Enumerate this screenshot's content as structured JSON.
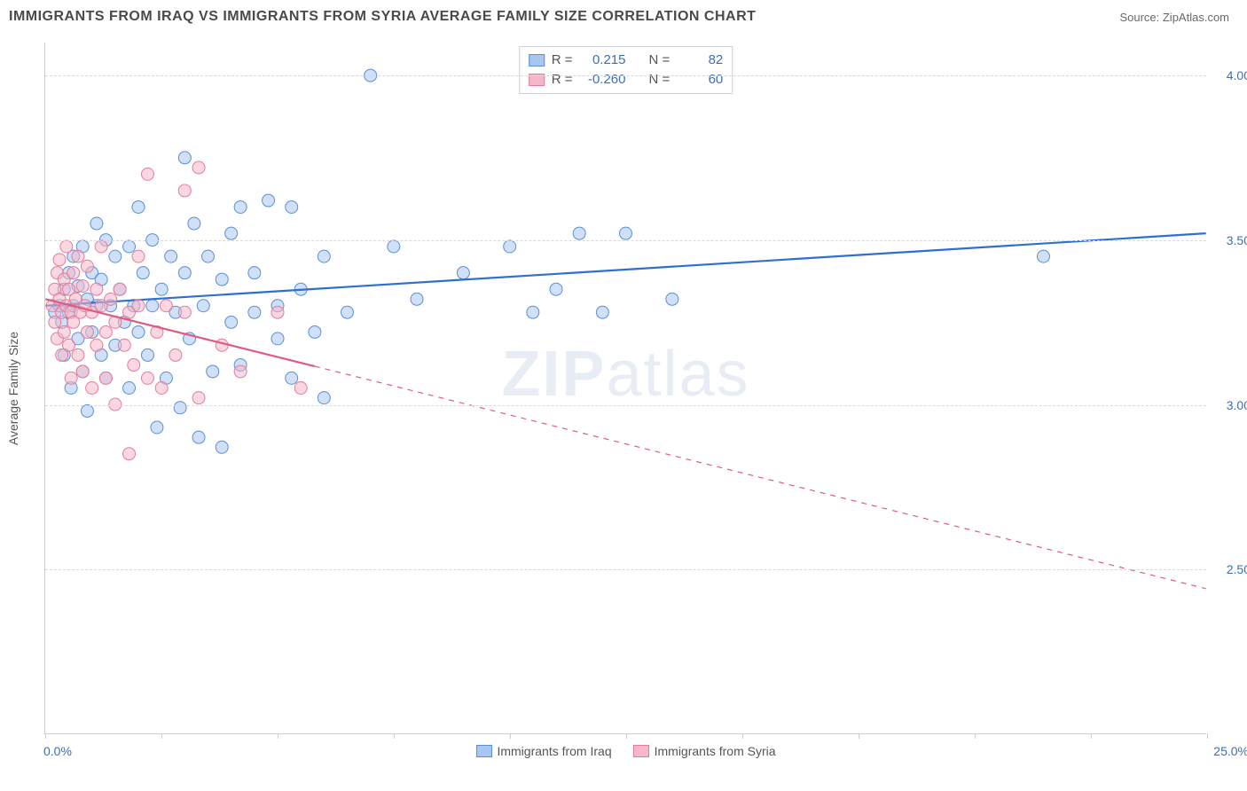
{
  "title": "IMMIGRANTS FROM IRAQ VS IMMIGRANTS FROM SYRIA AVERAGE FAMILY SIZE CORRELATION CHART",
  "source": "Source: ZipAtlas.com",
  "watermark_bold": "ZIP",
  "watermark_rest": "atlas",
  "y_axis_title": "Average Family Size",
  "chart": {
    "type": "scatter-with-regression",
    "background_color": "#ffffff",
    "grid_color": "#d8d8d8",
    "axis_color": "#cccccc",
    "text_color": "#555555",
    "value_color": "#3b6fb6",
    "xlim": [
      0,
      25
    ],
    "ylim": [
      2.0,
      4.1
    ],
    "y_ticks": [
      2.5,
      3.0,
      3.5,
      4.0
    ],
    "x_tick_step": 2.5,
    "x_start_label": "0.0%",
    "x_end_label": "25.0%",
    "marker_radius": 7,
    "marker_opacity": 0.55,
    "line_width": 2.2,
    "series": [
      {
        "name": "Immigrants from Iraq",
        "color_fill": "#a8c6f0",
        "color_stroke": "#5a8fd6",
        "line_color": "#2f6fd0",
        "R": "0.215",
        "N": "82",
        "regression": {
          "x1": 0,
          "y1": 3.3,
          "x2": 25,
          "y2": 3.52,
          "dashed_after_x": 25
        },
        "points": [
          [
            0.2,
            3.28
          ],
          [
            0.3,
            3.3
          ],
          [
            0.35,
            3.25
          ],
          [
            0.4,
            3.35
          ],
          [
            0.4,
            3.15
          ],
          [
            0.5,
            3.4
          ],
          [
            0.5,
            3.28
          ],
          [
            0.55,
            3.05
          ],
          [
            0.6,
            3.3
          ],
          [
            0.6,
            3.45
          ],
          [
            0.7,
            3.2
          ],
          [
            0.7,
            3.36
          ],
          [
            0.8,
            3.48
          ],
          [
            0.8,
            3.1
          ],
          [
            0.9,
            3.32
          ],
          [
            0.9,
            2.98
          ],
          [
            1.0,
            3.4
          ],
          [
            1.0,
            3.22
          ],
          [
            1.1,
            3.55
          ],
          [
            1.1,
            3.3
          ],
          [
            1.2,
            3.15
          ],
          [
            1.2,
            3.38
          ],
          [
            1.3,
            3.5
          ],
          [
            1.3,
            3.08
          ],
          [
            1.4,
            3.3
          ],
          [
            1.5,
            3.45
          ],
          [
            1.5,
            3.18
          ],
          [
            1.6,
            3.35
          ],
          [
            1.7,
            3.25
          ],
          [
            1.8,
            3.48
          ],
          [
            1.8,
            3.05
          ],
          [
            1.9,
            3.3
          ],
          [
            2.0,
            3.6
          ],
          [
            2.0,
            3.22
          ],
          [
            2.1,
            3.4
          ],
          [
            2.2,
            3.15
          ],
          [
            2.3,
            3.5
          ],
          [
            2.3,
            3.3
          ],
          [
            2.4,
            2.93
          ],
          [
            2.5,
            3.35
          ],
          [
            2.6,
            3.08
          ],
          [
            2.7,
            3.45
          ],
          [
            2.8,
            3.28
          ],
          [
            2.9,
            2.99
          ],
          [
            3.0,
            3.4
          ],
          [
            3.0,
            3.75
          ],
          [
            3.1,
            3.2
          ],
          [
            3.2,
            3.55
          ],
          [
            3.3,
            2.9
          ],
          [
            3.4,
            3.3
          ],
          [
            3.5,
            3.45
          ],
          [
            3.6,
            3.1
          ],
          [
            3.8,
            3.38
          ],
          [
            3.8,
            2.87
          ],
          [
            4.0,
            3.52
          ],
          [
            4.0,
            3.25
          ],
          [
            4.2,
            3.6
          ],
          [
            4.2,
            3.12
          ],
          [
            4.5,
            3.4
          ],
          [
            4.5,
            3.28
          ],
          [
            4.8,
            3.62
          ],
          [
            5.0,
            3.3
          ],
          [
            5.0,
            3.2
          ],
          [
            5.3,
            3.08
          ],
          [
            5.3,
            3.6
          ],
          [
            5.5,
            3.35
          ],
          [
            5.8,
            3.22
          ],
          [
            6.0,
            3.45
          ],
          [
            6.0,
            3.02
          ],
          [
            6.5,
            3.28
          ],
          [
            7.0,
            4.0
          ],
          [
            7.5,
            3.48
          ],
          [
            8.0,
            3.32
          ],
          [
            9.0,
            3.4
          ],
          [
            10.0,
            3.48
          ],
          [
            10.5,
            3.28
          ],
          [
            11.0,
            3.35
          ],
          [
            11.5,
            3.52
          ],
          [
            12.0,
            3.28
          ],
          [
            12.5,
            3.52
          ],
          [
            13.5,
            3.32
          ],
          [
            21.5,
            3.45
          ]
        ]
      },
      {
        "name": "Immigrants from Syria",
        "color_fill": "#f4b8c8",
        "color_stroke": "#e67a9a",
        "line_color": "#e05a82",
        "R": "-0.260",
        "N": "60",
        "regression": {
          "x1": 0,
          "y1": 3.32,
          "x2": 25,
          "y2": 2.44,
          "dashed_after_x": 5.8
        },
        "points": [
          [
            0.15,
            3.3
          ],
          [
            0.2,
            3.35
          ],
          [
            0.2,
            3.25
          ],
          [
            0.25,
            3.4
          ],
          [
            0.25,
            3.2
          ],
          [
            0.3,
            3.32
          ],
          [
            0.3,
            3.44
          ],
          [
            0.35,
            3.28
          ],
          [
            0.35,
            3.15
          ],
          [
            0.4,
            3.38
          ],
          [
            0.4,
            3.22
          ],
          [
            0.45,
            3.3
          ],
          [
            0.45,
            3.48
          ],
          [
            0.5,
            3.18
          ],
          [
            0.5,
            3.35
          ],
          [
            0.55,
            3.28
          ],
          [
            0.55,
            3.08
          ],
          [
            0.6,
            3.4
          ],
          [
            0.6,
            3.25
          ],
          [
            0.65,
            3.32
          ],
          [
            0.7,
            3.15
          ],
          [
            0.7,
            3.45
          ],
          [
            0.75,
            3.28
          ],
          [
            0.8,
            3.36
          ],
          [
            0.8,
            3.1
          ],
          [
            0.85,
            3.3
          ],
          [
            0.9,
            3.22
          ],
          [
            0.9,
            3.42
          ],
          [
            1.0,
            3.28
          ],
          [
            1.0,
            3.05
          ],
          [
            1.1,
            3.35
          ],
          [
            1.1,
            3.18
          ],
          [
            1.2,
            3.3
          ],
          [
            1.2,
            3.48
          ],
          [
            1.3,
            3.22
          ],
          [
            1.3,
            3.08
          ],
          [
            1.4,
            3.32
          ],
          [
            1.5,
            3.25
          ],
          [
            1.5,
            3.0
          ],
          [
            1.6,
            3.35
          ],
          [
            1.7,
            3.18
          ],
          [
            1.8,
            3.28
          ],
          [
            1.8,
            2.85
          ],
          [
            1.9,
            3.12
          ],
          [
            2.0,
            3.3
          ],
          [
            2.0,
            3.45
          ],
          [
            2.2,
            3.08
          ],
          [
            2.2,
            3.7
          ],
          [
            2.4,
            3.22
          ],
          [
            2.5,
            3.05
          ],
          [
            2.6,
            3.3
          ],
          [
            2.8,
            3.15
          ],
          [
            3.0,
            3.65
          ],
          [
            3.0,
            3.28
          ],
          [
            3.3,
            3.02
          ],
          [
            3.3,
            3.72
          ],
          [
            3.8,
            3.18
          ],
          [
            4.2,
            3.1
          ],
          [
            5.0,
            3.28
          ],
          [
            5.5,
            3.05
          ]
        ]
      }
    ]
  },
  "stats_legend": {
    "r_label": "R =",
    "n_label": "N ="
  },
  "bottom_legend": {
    "items": [
      "Immigrants from Iraq",
      "Immigrants from Syria"
    ]
  }
}
